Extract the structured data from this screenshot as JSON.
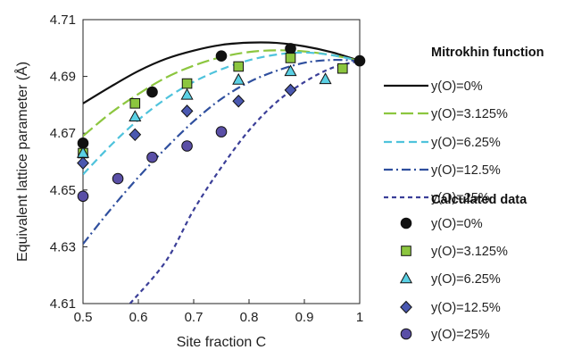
{
  "chart_data": {
    "type": "scatter",
    "xlabel": "Site fraction C",
    "ylabel": "Equivalent lattice parameter (Å)",
    "xlim": [
      0.5,
      1.0
    ],
    "ylim": [
      4.61,
      4.71
    ],
    "x_ticks": [
      "0.5",
      "0.6",
      "0.7",
      "0.8",
      "0.9",
      "1"
    ],
    "y_ticks": [
      "4.61",
      "4.63",
      "4.65",
      "4.67",
      "4.69",
      "4.71"
    ],
    "grid": false,
    "legend_placement": "right",
    "legend_groups": [
      {
        "title": "Mitrokhin function",
        "entries": [
          {
            "label": "y(O)=0%",
            "color": "#111111",
            "dash": "solid"
          },
          {
            "label": "y(O)=3.125%",
            "color": "#8cc63f",
            "dash": "long-dash"
          },
          {
            "label": "y(O)=6.25%",
            "color": "#4fc3dc",
            "dash": "dash"
          },
          {
            "label": "y(O)=12.5%",
            "color": "#2f4f9e",
            "dash": "dash-dot"
          },
          {
            "label": "y(O)=25%",
            "color": "#3b3f98",
            "dash": "short-dash"
          }
        ]
      },
      {
        "title": "Calculated data",
        "entries": [
          {
            "label": "y(O)=0%",
            "color": "#111111",
            "marker": "circle"
          },
          {
            "label": "y(O)=3.125%",
            "color": "#8cc63f",
            "marker": "square"
          },
          {
            "label": "y(O)=6.25%",
            "color": "#5ad0e4",
            "marker": "triangle"
          },
          {
            "label": "y(O)=12.5%",
            "color": "#4a58b0",
            "marker": "diamond"
          },
          {
            "label": "y(O)=25%",
            "color": "#5a4fa6",
            "marker": "circle"
          }
        ]
      }
    ],
    "lines": [
      {
        "name": "y(O)=0%",
        "x": [
          0.5,
          0.55,
          0.6,
          0.65,
          0.7,
          0.75,
          0.8,
          0.85,
          0.9,
          0.95,
          1.0
        ],
        "y": [
          4.6805,
          4.6864,
          4.6919,
          4.6962,
          4.6991,
          4.7011,
          4.7019,
          4.7018,
          4.7006,
          4.6985,
          4.6955
        ]
      },
      {
        "name": "y(O)=3.125%",
        "x": [
          0.5,
          0.55,
          0.6,
          0.65,
          0.7,
          0.75,
          0.8,
          0.85,
          0.9,
          0.95,
          1.0
        ],
        "y": [
          4.669,
          4.6771,
          4.6838,
          4.6896,
          4.6938,
          4.6968,
          4.6986,
          4.6992,
          4.6988,
          4.6975,
          4.6955
        ]
      },
      {
        "name": "y(O)=6.25%",
        "x": [
          0.5,
          0.55,
          0.6,
          0.65,
          0.7,
          0.75,
          0.8,
          0.85,
          0.9,
          0.95,
          1.0
        ],
        "y": [
          4.6555,
          4.6657,
          4.6747,
          4.6822,
          4.6881,
          4.6925,
          4.6957,
          4.6977,
          4.6984,
          4.6975,
          4.6955
        ]
      },
      {
        "name": "y(O)=12.5%",
        "x": [
          0.5,
          0.55,
          0.6,
          0.65,
          0.7,
          0.75,
          0.8,
          0.85,
          0.9,
          0.95,
          1.0
        ],
        "y": [
          4.631,
          4.6432,
          4.6545,
          4.6648,
          4.6742,
          4.6821,
          4.688,
          4.692,
          4.6948,
          4.6958,
          4.6955
        ]
      },
      {
        "name": "y(O)=25%",
        "x": [
          0.585,
          0.65,
          0.7,
          0.75,
          0.8,
          0.85,
          0.9,
          0.95,
          1.0
        ],
        "y": [
          4.61,
          4.625,
          4.643,
          4.658,
          4.671,
          4.681,
          4.688,
          4.693,
          4.6955
        ]
      }
    ],
    "points": [
      {
        "name": "y(O)=0%",
        "marker": "circle",
        "x": [
          0.5,
          0.625,
          0.75,
          0.875,
          1.0
        ],
        "y": [
          4.6665,
          4.6845,
          4.6972,
          4.6998,
          4.6955
        ]
      },
      {
        "name": "y(O)=3.125%",
        "marker": "square",
        "x": [
          0.5,
          0.594,
          0.688,
          0.781,
          0.875,
          0.969
        ],
        "y": [
          4.663,
          4.6805,
          4.6875,
          4.6935,
          4.6965,
          4.6928
        ]
      },
      {
        "name": "y(O)=6.25%",
        "marker": "triangle",
        "x": [
          0.5,
          0.594,
          0.688,
          0.781,
          0.875,
          0.938
        ],
        "y": [
          4.663,
          4.6758,
          4.6835,
          4.6888,
          4.6918,
          4.689
        ]
      },
      {
        "name": "y(O)=12.5%",
        "marker": "diamond",
        "x": [
          0.5,
          0.594,
          0.688,
          0.781,
          0.875
        ],
        "y": [
          4.6595,
          4.6695,
          4.6778,
          4.6813,
          4.6852
        ]
      },
      {
        "name": "y(O)=25%",
        "marker": "circle",
        "x": [
          0.5,
          0.563,
          0.625,
          0.688,
          0.75
        ],
        "y": [
          4.6478,
          4.654,
          4.6615,
          4.6655,
          4.6705
        ]
      }
    ]
  }
}
